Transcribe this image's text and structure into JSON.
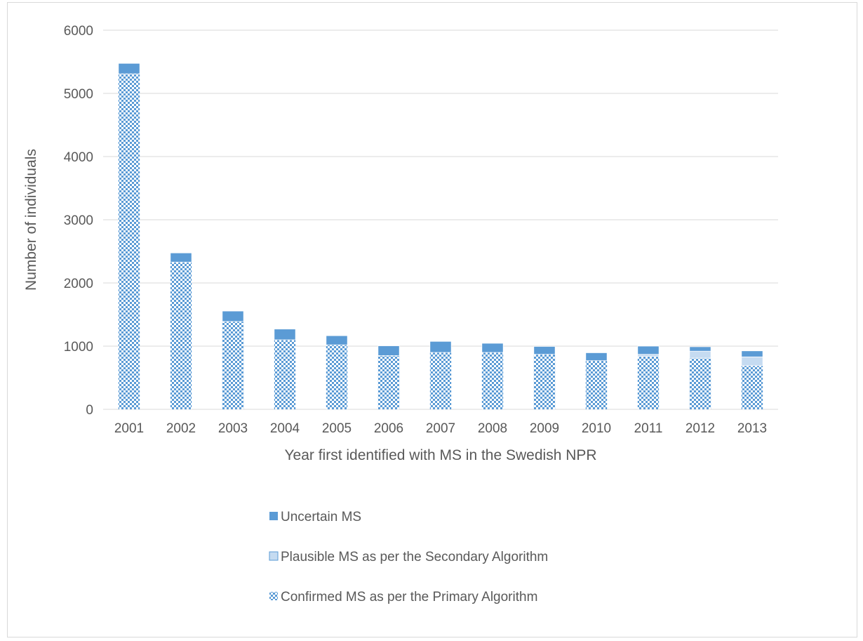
{
  "chart_data": {
    "type": "bar",
    "stacked": true,
    "title": "",
    "xlabel": "Year first identified with MS in the Swedish NPR",
    "ylabel": "Number of individuals",
    "ylim": [
      0,
      6000
    ],
    "yticks": [
      0,
      1000,
      2000,
      3000,
      4000,
      5000,
      6000
    ],
    "grid": "horizontal",
    "legend_position": "bottom",
    "categories": [
      "2001",
      "2002",
      "2003",
      "2004",
      "2005",
      "2006",
      "2007",
      "2008",
      "2009",
      "2010",
      "2011",
      "2012",
      "2013"
    ],
    "series": [
      {
        "name": "Confirmed MS as per the Primary Algorithm",
        "color": "#5b9bd5",
        "pattern": "checkerboard",
        "values": [
          5310,
          2330,
          1390,
          1100,
          1020,
          850,
          900,
          900,
          870,
          770,
          840,
          810,
          690
        ]
      },
      {
        "name": "Plausible MS as per the Secondary Algorithm",
        "color": "#c5dbf1",
        "pattern": "solid",
        "values": [
          0,
          0,
          0,
          0,
          0,
          0,
          0,
          0,
          0,
          0,
          30,
          110,
          140
        ]
      },
      {
        "name": "Uncertain MS",
        "color": "#5b9bd5",
        "pattern": "solid",
        "values": [
          165,
          145,
          165,
          170,
          145,
          155,
          175,
          145,
          125,
          125,
          130,
          70,
          95
        ]
      }
    ]
  }
}
